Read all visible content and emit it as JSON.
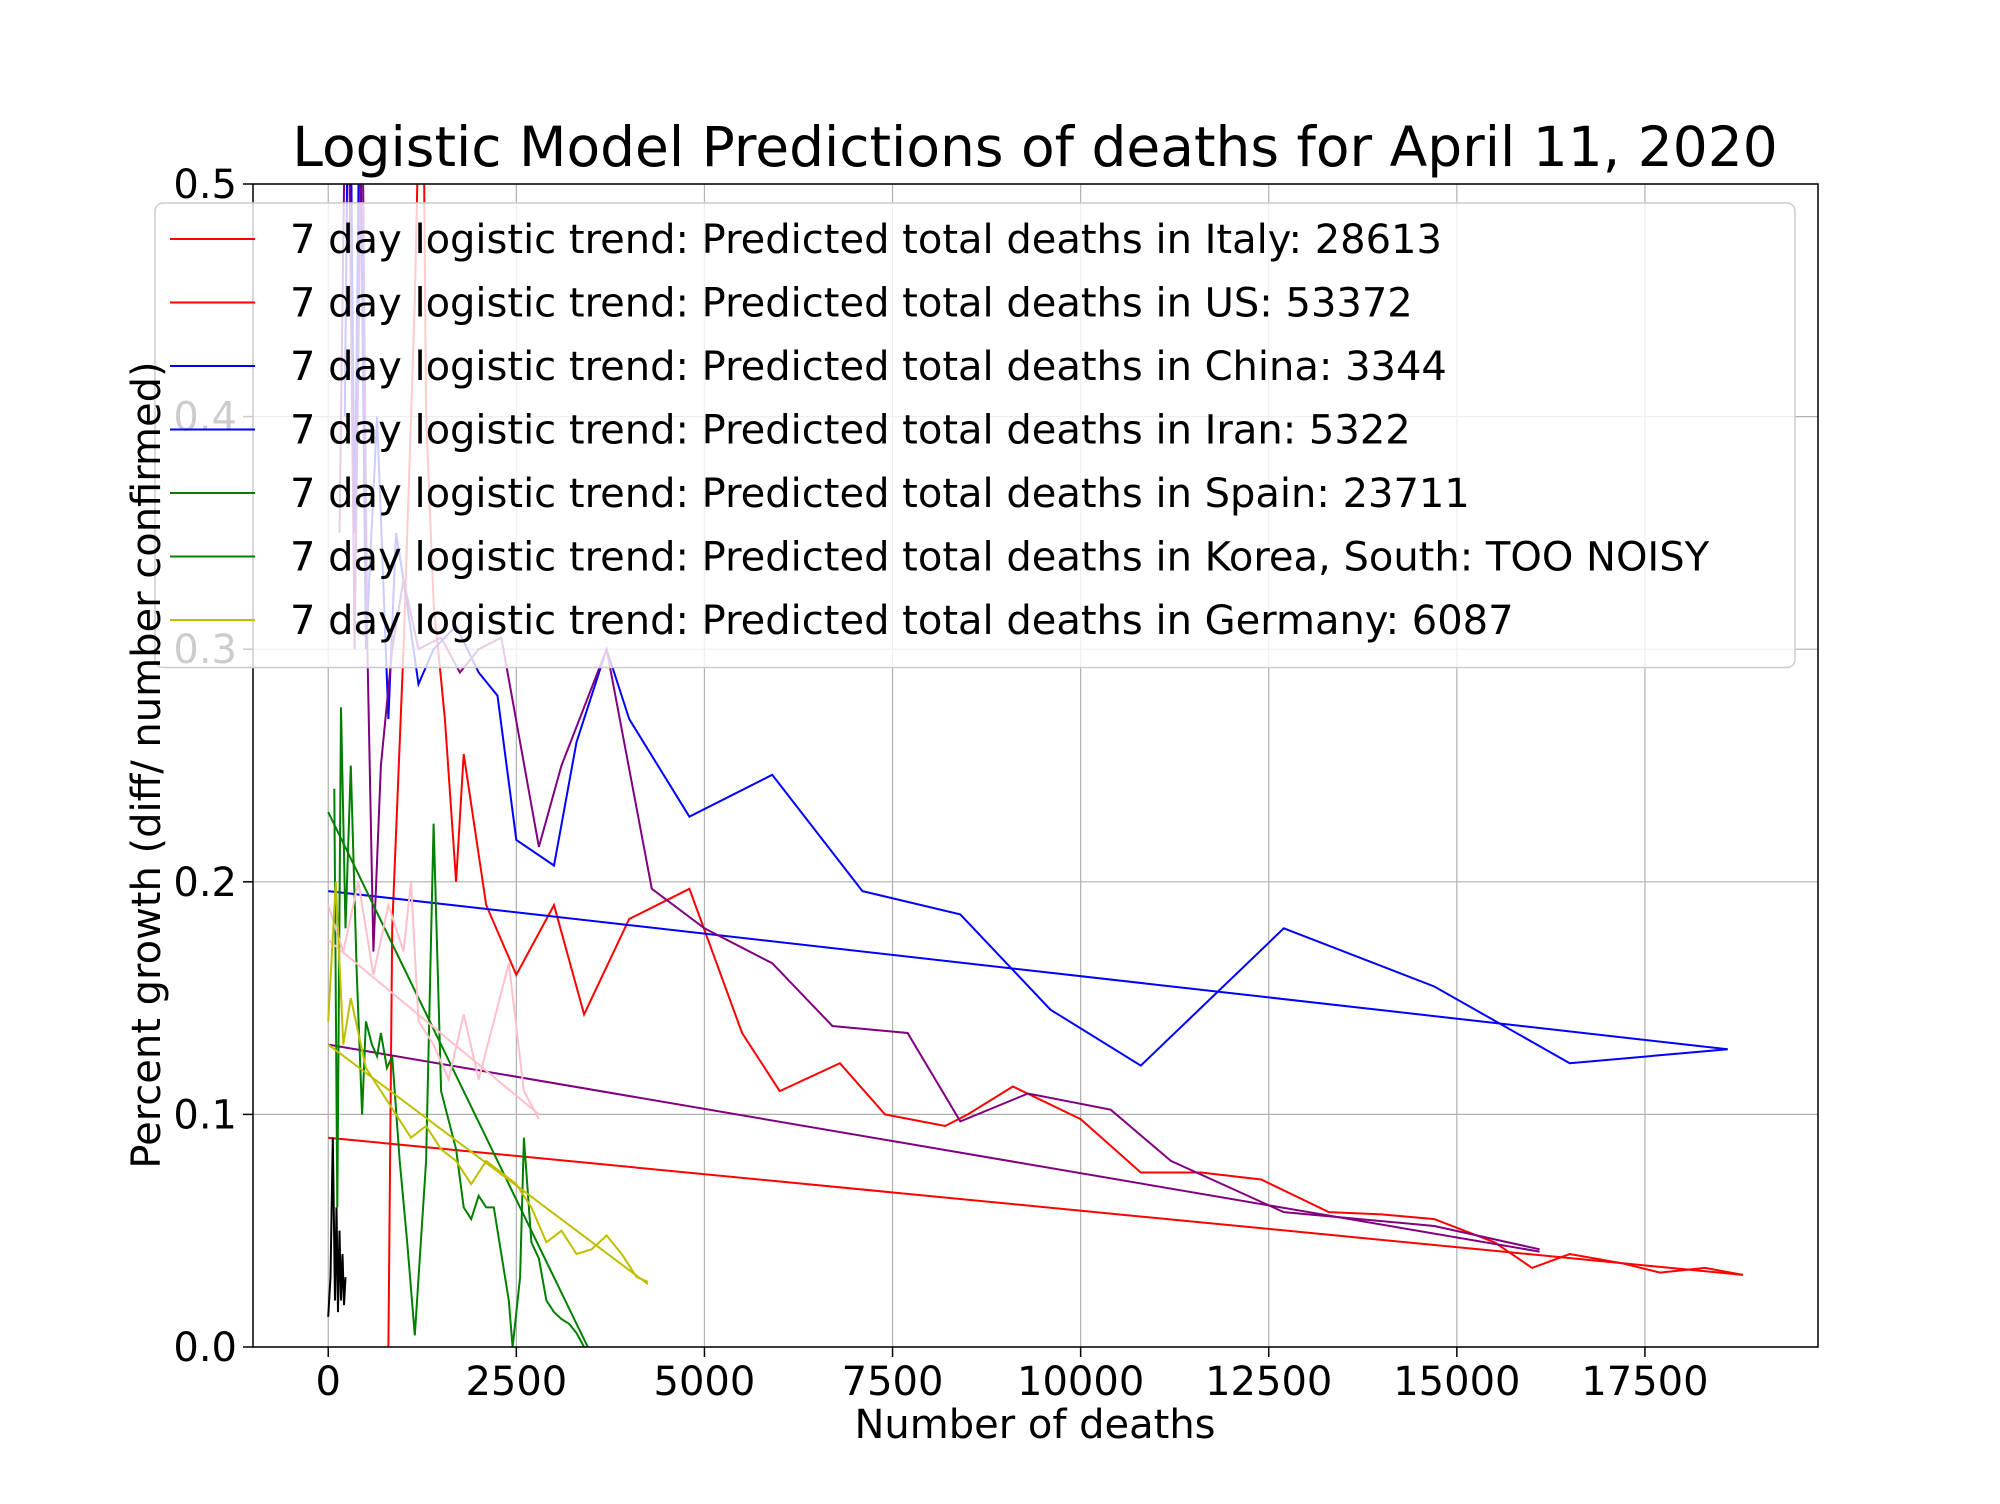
{
  "chart_data": {
    "type": "line",
    "title": "Logistic Model Predictions of deaths for April 11, 2020",
    "xlabel": "Number of deaths",
    "ylabel": "Percent growth (diff/ number confirmed)",
    "xlim": [
      -1000,
      19800
    ],
    "ylim": [
      0,
      0.5
    ],
    "x_ticks": [
      0,
      2500,
      5000,
      7500,
      10000,
      12500,
      15000,
      17500
    ],
    "x_tick_labels": [
      "0",
      "2500",
      "5000",
      "7500",
      "10000",
      "12500",
      "15000",
      "17500"
    ],
    "y_ticks": [
      0,
      0.1,
      0.2,
      0.3,
      0.4,
      0.5
    ],
    "y_tick_labels": [
      "0.0",
      "0.1",
      "0.2",
      "0.3",
      "0.4",
      "0.5"
    ],
    "grid": true,
    "legend_position": "top",
    "legend": [
      {
        "label": "7 day logistic trend: Predicted total deaths in Italy: 28613",
        "color": "#ff0000"
      },
      {
        "label": "7 day logistic trend: Predicted total deaths in US: 53372",
        "color": "#ff0000"
      },
      {
        "label": "7 day logistic trend: Predicted total deaths in China: 3344",
        "color": "#0000ff"
      },
      {
        "label": "7 day logistic trend: Predicted total deaths in Iran: 5322",
        "color": "#0000ff"
      },
      {
        "label": "7 day logistic trend: Predicted total deaths in Spain: 23711",
        "color": "#008000"
      },
      {
        "label": "7 day logistic trend: Predicted total deaths in Korea, South: TOO NOISY",
        "color": "#008000"
      },
      {
        "label": "7 day logistic trend: Predicted total deaths in Germany: 6087",
        "color": "#bfbf00"
      }
    ],
    "series": [
      {
        "color": "#ff0000",
        "points": [
          [
            800,
            0
          ],
          [
            850,
            0.18
          ],
          [
            1000,
            0.3
          ],
          [
            1150,
            0.45
          ],
          [
            1250,
            0.6
          ],
          [
            1300,
            0.4
          ],
          [
            1400,
            0.32
          ],
          [
            1550,
            0.27
          ],
          [
            1700,
            0.2
          ],
          [
            1800,
            0.255
          ],
          [
            2100,
            0.19
          ],
          [
            2500,
            0.16
          ],
          [
            3000,
            0.19
          ],
          [
            3400,
            0.143
          ],
          [
            4000,
            0.184
          ],
          [
            4800,
            0.197
          ],
          [
            5500,
            0.135
          ],
          [
            6000,
            0.11
          ],
          [
            6800,
            0.122
          ],
          [
            7400,
            0.1
          ],
          [
            8200,
            0.095
          ],
          [
            8500,
            0.1
          ],
          [
            9100,
            0.112
          ],
          [
            10000,
            0.098
          ],
          [
            10800,
            0.075
          ],
          [
            11600,
            0.075
          ],
          [
            12400,
            0.072
          ],
          [
            13300,
            0.058
          ],
          [
            14000,
            0.057
          ],
          [
            14700,
            0.055
          ],
          [
            15500,
            0.045
          ],
          [
            16000,
            0.034
          ],
          [
            16500,
            0.04
          ],
          [
            17200,
            0.036
          ],
          [
            17700,
            0.032
          ],
          [
            18300,
            0.034
          ],
          [
            18800,
            0.031
          ]
        ]
      },
      {
        "color": "#ff0000",
        "points": [
          [
            0,
            0.09
          ],
          [
            18800,
            0.031
          ]
        ]
      },
      {
        "color": "#0000ff",
        "points": [
          [
            220,
            0.4
          ],
          [
            280,
            0.6
          ],
          [
            350,
            0.35
          ],
          [
            420,
            0.55
          ],
          [
            500,
            0.3
          ],
          [
            650,
            0.4
          ],
          [
            800,
            0.27
          ],
          [
            900,
            0.35
          ],
          [
            1000,
            0.33
          ],
          [
            1200,
            0.285
          ],
          [
            1400,
            0.3
          ],
          [
            1700,
            0.31
          ],
          [
            2000,
            0.29
          ],
          [
            2250,
            0.28
          ],
          [
            2500,
            0.218
          ],
          [
            3000,
            0.207
          ],
          [
            3300,
            0.26
          ],
          [
            3700,
            0.3
          ],
          [
            4000,
            0.27
          ],
          [
            4800,
            0.228
          ],
          [
            5900,
            0.246
          ],
          [
            7100,
            0.196
          ],
          [
            8400,
            0.186
          ],
          [
            9600,
            0.145
          ],
          [
            10800,
            0.121
          ],
          [
            12700,
            0.18
          ],
          [
            14700,
            0.155
          ],
          [
            16500,
            0.122
          ],
          [
            18600,
            0.128
          ]
        ]
      },
      {
        "color": "#0000ff",
        "points": [
          [
            0,
            0.196
          ],
          [
            18600,
            0.128
          ]
        ]
      },
      {
        "color": "#800080",
        "points": [
          [
            150,
            0.35
          ],
          [
            250,
            0.6
          ],
          [
            350,
            0.3
          ],
          [
            450,
            0.55
          ],
          [
            520,
            0.3
          ],
          [
            600,
            0.17
          ],
          [
            700,
            0.25
          ],
          [
            850,
            0.3
          ],
          [
            1000,
            0.33
          ],
          [
            1200,
            0.3
          ],
          [
            1500,
            0.305
          ],
          [
            1750,
            0.29
          ],
          [
            2000,
            0.3
          ],
          [
            2300,
            0.305
          ],
          [
            2800,
            0.215
          ],
          [
            3100,
            0.25
          ],
          [
            3700,
            0.3
          ],
          [
            4300,
            0.197
          ],
          [
            5000,
            0.18
          ],
          [
            5900,
            0.165
          ],
          [
            6700,
            0.138
          ],
          [
            7700,
            0.135
          ],
          [
            8400,
            0.097
          ],
          [
            9300,
            0.109
          ],
          [
            10400,
            0.102
          ],
          [
            11200,
            0.08
          ],
          [
            12700,
            0.058
          ],
          [
            14700,
            0.052
          ],
          [
            16100,
            0.042
          ]
        ]
      },
      {
        "color": "#800080",
        "points": [
          [
            0,
            0.13
          ],
          [
            16100,
            0.041
          ]
        ]
      },
      {
        "color": "#008000",
        "points": [
          [
            80,
            0.24
          ],
          [
            120,
            0.06
          ],
          [
            170,
            0.275
          ],
          [
            230,
            0.18
          ],
          [
            300,
            0.25
          ],
          [
            380,
            0.16
          ],
          [
            450,
            0.1
          ],
          [
            500,
            0.14
          ],
          [
            580,
            0.13
          ],
          [
            650,
            0.125
          ],
          [
            700,
            0.135
          ],
          [
            780,
            0.12
          ],
          [
            850,
            0.125
          ],
          [
            950,
            0.08
          ],
          [
            1050,
            0.045
          ],
          [
            1150,
            0.005
          ],
          [
            1300,
            0.08
          ],
          [
            1400,
            0.225
          ],
          [
            1500,
            0.11
          ],
          [
            1700,
            0.085
          ],
          [
            1800,
            0.06
          ],
          [
            1900,
            0.055
          ],
          [
            2000,
            0.065
          ],
          [
            2100,
            0.06
          ],
          [
            2200,
            0.06
          ],
          [
            2300,
            0.04
          ],
          [
            2400,
            0.02
          ],
          [
            2450,
            0.0
          ],
          [
            2550,
            0.03
          ],
          [
            2600,
            0.09
          ],
          [
            2700,
            0.045
          ],
          [
            2800,
            0.038
          ],
          [
            2900,
            0.02
          ],
          [
            3000,
            0.015
          ],
          [
            3100,
            0.012
          ],
          [
            3200,
            0.01
          ],
          [
            3300,
            0.006
          ],
          [
            3400,
            0.0
          ]
        ]
      },
      {
        "color": "#008000",
        "points": [
          [
            0,
            0.23
          ],
          [
            3450,
            0.0
          ]
        ]
      },
      {
        "color": "#ffc0cb",
        "points": [
          [
            0,
            0.19
          ],
          [
            200,
            0.17
          ],
          [
            400,
            0.2
          ],
          [
            600,
            0.16
          ],
          [
            800,
            0.19
          ],
          [
            1000,
            0.17
          ],
          [
            1100,
            0.2
          ],
          [
            1200,
            0.14
          ],
          [
            1400,
            0.13
          ],
          [
            1600,
            0.115
          ],
          [
            1800,
            0.143
          ],
          [
            2000,
            0.115
          ],
          [
            2200,
            0.14
          ],
          [
            2400,
            0.165
          ],
          [
            2600,
            0.11
          ],
          [
            2800,
            0.098
          ]
        ]
      },
      {
        "color": "#ffc0cb",
        "points": [
          [
            0,
            0.175
          ],
          [
            2800,
            0.1
          ]
        ]
      },
      {
        "color": "#bfbf00",
        "points": [
          [
            0,
            0.14
          ],
          [
            100,
            0.2
          ],
          [
            200,
            0.13
          ],
          [
            300,
            0.15
          ],
          [
            500,
            0.12
          ],
          [
            700,
            0.11
          ],
          [
            900,
            0.1
          ],
          [
            1100,
            0.09
          ],
          [
            1300,
            0.095
          ],
          [
            1500,
            0.085
          ],
          [
            1700,
            0.08
          ],
          [
            1900,
            0.07
          ],
          [
            2100,
            0.08
          ],
          [
            2300,
            0.075
          ],
          [
            2500,
            0.07
          ],
          [
            2700,
            0.06
          ],
          [
            2900,
            0.045
          ],
          [
            3100,
            0.05
          ],
          [
            3300,
            0.04
          ],
          [
            3500,
            0.042
          ],
          [
            3700,
            0.048
          ],
          [
            3900,
            0.04
          ],
          [
            4100,
            0.03
          ],
          [
            4250,
            0.028
          ]
        ]
      },
      {
        "color": "#bfbf00",
        "points": [
          [
            0,
            0.13
          ],
          [
            4250,
            0.027
          ]
        ]
      },
      {
        "color": "#000000",
        "points": [
          [
            0,
            0.013
          ],
          [
            30,
            0.03
          ],
          [
            60,
            0.09
          ],
          [
            90,
            0.02
          ],
          [
            110,
            0.06
          ],
          [
            130,
            0.015
          ],
          [
            150,
            0.05
          ],
          [
            170,
            0.02
          ],
          [
            190,
            0.04
          ],
          [
            210,
            0.018
          ],
          [
            230,
            0.03
          ]
        ]
      }
    ]
  }
}
